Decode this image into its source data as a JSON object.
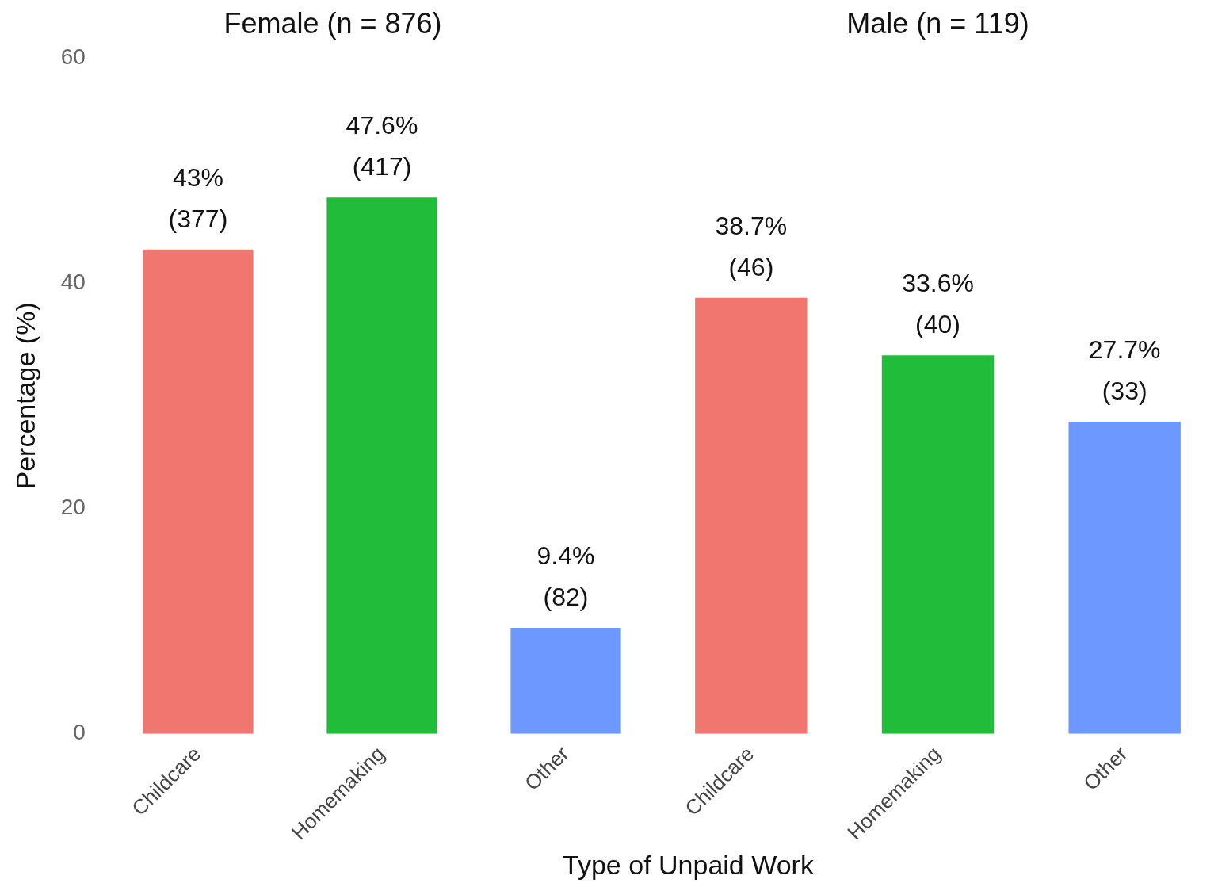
{
  "chart_data": [
    {
      "type": "bar",
      "title": "Female (n = 876)",
      "ylabel": "Percentage (%)",
      "xlabel": "Type of Unpaid Work",
      "categories": [
        "Childcare",
        "Homemaking",
        "Other"
      ],
      "values": [
        43,
        47.6,
        9.4
      ],
      "colors": [
        "#f17670",
        "#1fbd3a",
        "#6c98ff"
      ],
      "value_labels": [
        "43%\n(377)",
        "47.6%\n(417)",
        "9.4%\n(82)"
      ],
      "ylim": [
        0,
        60
      ],
      "yticks": [
        0,
        20,
        40,
        60
      ],
      "legend": false
    },
    {
      "type": "bar",
      "title": "Male (n = 119)",
      "categories": [
        "Childcare",
        "Homemaking",
        "Other"
      ],
      "values": [
        38.7,
        33.6,
        27.7
      ],
      "colors": [
        "#f17670",
        "#1fbd3a",
        "#6c98ff"
      ],
      "value_labels": [
        "38.7%\n(46)",
        "33.6%\n(40)",
        "27.7%\n(33)"
      ],
      "ylim": [
        0,
        60
      ],
      "yticks": [
        0,
        20,
        40,
        60
      ],
      "tick_labels": "x",
      "legend": false
    }
  ]
}
